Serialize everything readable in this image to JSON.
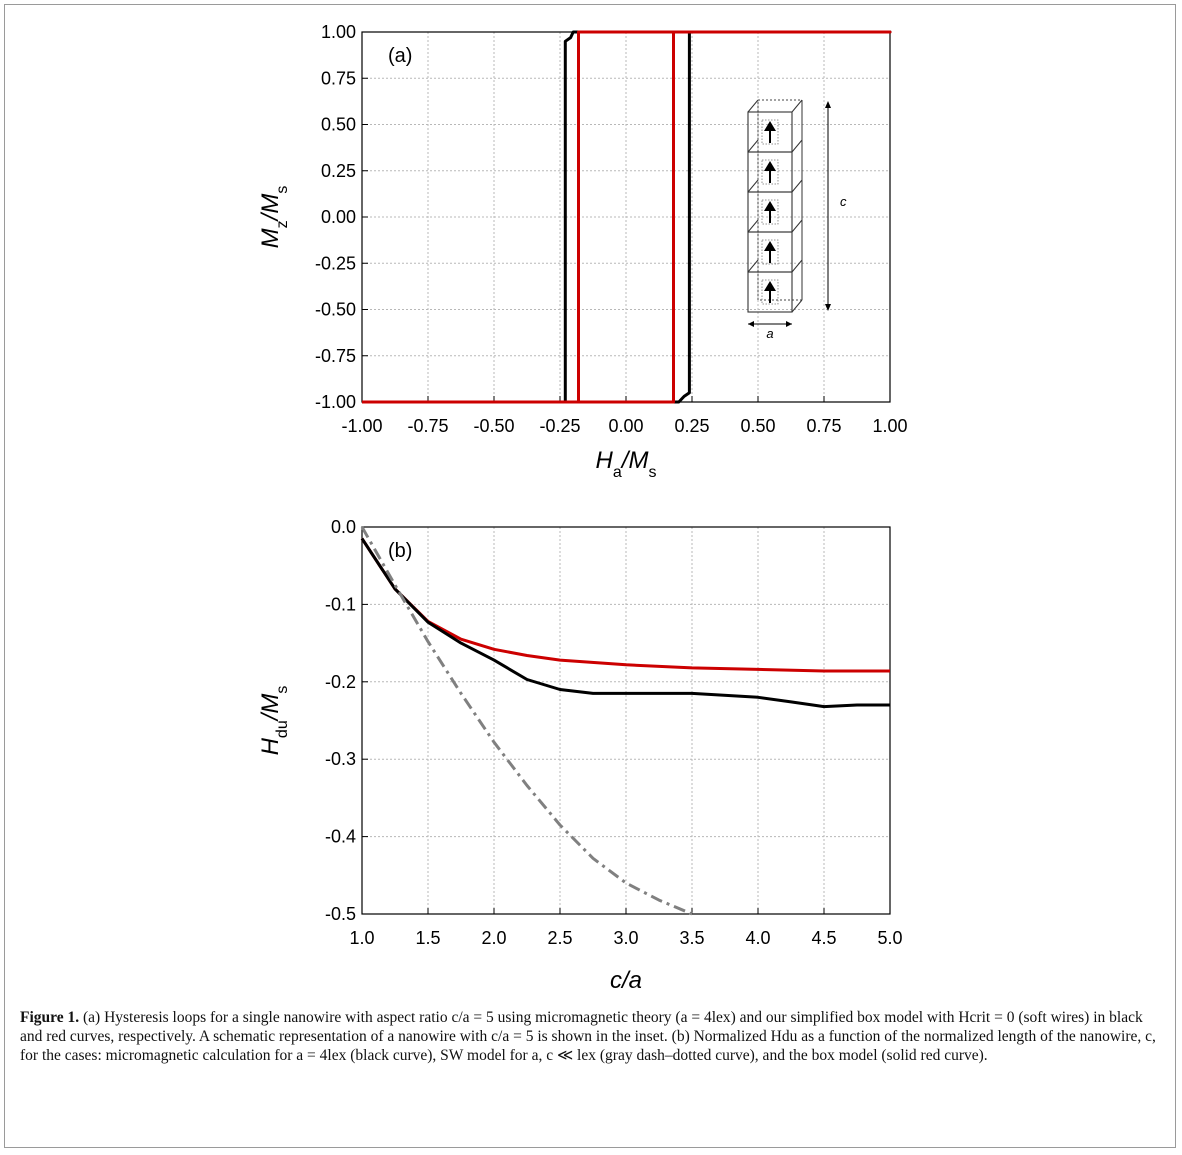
{
  "chart_data": [
    {
      "type": "line",
      "panel": "(a)",
      "xlabel": "Ha/Ms",
      "ylabel": "Mz/Ms",
      "xlim": [
        -1.0,
        1.0
      ],
      "ylim": [
        -1.0,
        1.0
      ],
      "x_ticks": [
        "-1.00",
        "-0.75",
        "-0.50",
        "-0.25",
        "0.00",
        "0.25",
        "0.50",
        "0.75",
        "1.00"
      ],
      "y_ticks": [
        "1.00",
        "0.75",
        "0.50",
        "0.25",
        "0.00",
        "-0.25",
        "-0.50",
        "-0.75",
        "-1.00"
      ],
      "grid": true,
      "series": [
        {
          "color": "#000000",
          "points": [
            [
              -1.0,
              -1.0
            ],
            [
              -0.23,
              -1.0
            ],
            [
              -0.23,
              0.95
            ],
            [
              -0.21,
              0.97
            ],
            [
              -0.2,
              1.0
            ],
            [
              1.0,
              1.0
            ],
            [
              0.24,
              1.0
            ],
            [
              0.24,
              -0.95
            ],
            [
              0.22,
              -0.97
            ],
            [
              0.2,
              -1.0
            ],
            [
              -1.0,
              -1.0
            ]
          ]
        },
        {
          "color": "#cc0000",
          "points": [
            [
              -1.0,
              -1.0
            ],
            [
              -0.18,
              -1.0
            ],
            [
              -0.18,
              1.0
            ],
            [
              1.0,
              1.0
            ],
            [
              0.18,
              1.0
            ],
            [
              0.18,
              -1.0
            ],
            [
              -1.0,
              -1.0
            ]
          ]
        }
      ],
      "inset": {
        "description_labels": {
          "length": "c",
          "width": "a"
        },
        "cells": 5
      }
    },
    {
      "type": "line",
      "panel": "(b)",
      "xlabel": "c/a",
      "ylabel": "Hdu/Ms",
      "xlim": [
        1.0,
        5.0
      ],
      "ylim": [
        -0.5,
        0.0
      ],
      "x_ticks": [
        "1.0",
        "1.5",
        "2.0",
        "2.5",
        "3.0",
        "3.5",
        "4.0",
        "4.5",
        "5.0"
      ],
      "y_ticks": [
        "0.0",
        "-0.1",
        "-0.2",
        "-0.3",
        "-0.4",
        "-0.5"
      ],
      "grid": true,
      "series": [
        {
          "color": "#cc0000",
          "style": "solid",
          "points": [
            [
              1.0,
              -0.015
            ],
            [
              1.25,
              -0.08
            ],
            [
              1.5,
              -0.122
            ],
            [
              1.75,
              -0.145
            ],
            [
              2.0,
              -0.158
            ],
            [
              2.25,
              -0.166
            ],
            [
              2.5,
              -0.172
            ],
            [
              3.0,
              -0.178
            ],
            [
              3.5,
              -0.182
            ],
            [
              4.0,
              -0.184
            ],
            [
              4.5,
              -0.186
            ],
            [
              5.0,
              -0.186
            ]
          ]
        },
        {
          "color": "#000000",
          "style": "solid",
          "points": [
            [
              1.0,
              -0.015
            ],
            [
              1.25,
              -0.08
            ],
            [
              1.5,
              -0.123
            ],
            [
              1.75,
              -0.15
            ],
            [
              2.0,
              -0.172
            ],
            [
              2.25,
              -0.197
            ],
            [
              2.5,
              -0.21
            ],
            [
              2.75,
              -0.215
            ],
            [
              3.0,
              -0.215
            ],
            [
              3.5,
              -0.215
            ],
            [
              4.0,
              -0.22
            ],
            [
              4.25,
              -0.226
            ],
            [
              4.5,
              -0.232
            ],
            [
              4.75,
              -0.23
            ],
            [
              5.0,
              -0.23
            ]
          ]
        },
        {
          "color": "#808080",
          "style": "dashdot",
          "points": [
            [
              1.0,
              0.0
            ],
            [
              1.25,
              -0.075
            ],
            [
              1.5,
              -0.148
            ],
            [
              1.75,
              -0.215
            ],
            [
              2.0,
              -0.278
            ],
            [
              2.25,
              -0.334
            ],
            [
              2.5,
              -0.385
            ],
            [
              2.75,
              -0.428
            ],
            [
              3.0,
              -0.46
            ],
            [
              3.25,
              -0.482
            ],
            [
              3.5,
              -0.5
            ]
          ]
        }
      ]
    }
  ],
  "caption": {
    "label": "Figure 1.",
    "text": "(a) Hysteresis loops for a single nanowire with aspect ratio c/a = 5 using micromagnetic theory (a = 4lex) and our simplified box model with Hcrit = 0 (soft wires) in black and red curves, respectively. A schematic representation of a nanowire with c/a = 5 is shown in the inset. (b) Normalized Hdu as a function of the normalized length of the nanowire, c, for the cases: micromagnetic calculation for a = 4lex (black curve), SW model for a, c ≪ lex (gray dash–dotted curve), and the box model (solid red curve)."
  }
}
